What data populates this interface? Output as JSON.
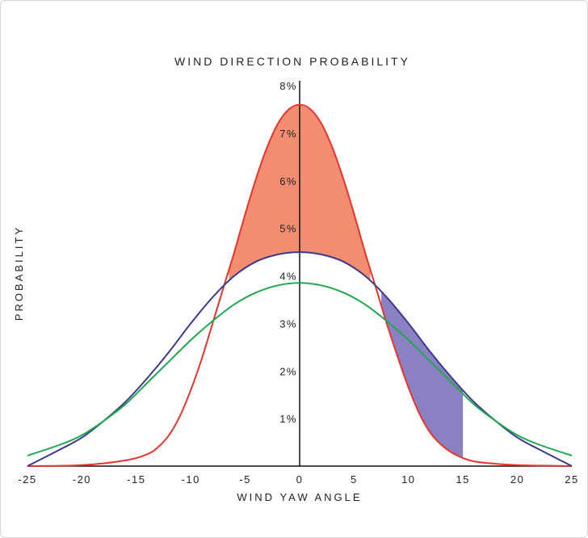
{
  "chart_data": {
    "type": "line",
    "title": "WIND DIRECTION PROBABILITY",
    "xlabel": "WIND YAW ANGLE",
    "ylabel": "PROBABILITY",
    "xlim": [
      -25,
      25
    ],
    "ylim": [
      0,
      8
    ],
    "x_ticks": [
      -25,
      -20,
      -15,
      -10,
      -5,
      0,
      5,
      10,
      15,
      20,
      25
    ],
    "x_tick_labels": [
      "-25",
      "-20",
      "-15",
      "-10",
      "-5",
      "0",
      "5",
      "10",
      "15",
      "20",
      "25"
    ],
    "y_ticks": [
      1,
      2,
      3,
      4,
      5,
      6,
      7,
      8
    ],
    "y_tick_labels": [
      "1%",
      "2%",
      "3%",
      "4%",
      "5%",
      "6%",
      "7%",
      "8%"
    ],
    "grid": false,
    "series": [
      {
        "color": "#e8342b",
        "x": [
          -25,
          -20,
          -16,
          -14,
          -13,
          -12,
          -11,
          -10,
          -9,
          -8,
          -7,
          -6,
          -5,
          -4,
          -3,
          -2,
          -1,
          0,
          1,
          2,
          3,
          4,
          5,
          6,
          7,
          8,
          9,
          10,
          11,
          12,
          13,
          14,
          15,
          16,
          18,
          20,
          22,
          25
        ],
        "y": [
          0,
          0.02,
          0.12,
          0.25,
          0.4,
          0.65,
          1.05,
          1.6,
          2.25,
          3.0,
          3.75,
          4.5,
          5.3,
          6.05,
          6.7,
          7.2,
          7.5,
          7.6,
          7.5,
          7.2,
          6.7,
          6.05,
          5.3,
          4.5,
          3.75,
          3.0,
          2.3,
          1.65,
          1.1,
          0.7,
          0.45,
          0.28,
          0.17,
          0.1,
          0.05,
          0.02,
          0.01,
          0
        ]
      },
      {
        "color": "#3a3a8c",
        "x": [
          -25,
          -22,
          -20,
          -18,
          -16,
          -14,
          -12,
          -10,
          -8,
          -6,
          -4,
          -2,
          0,
          2,
          4,
          6,
          8,
          10,
          12,
          14,
          16,
          18,
          20,
          22,
          25
        ],
        "y": [
          0.0,
          0.35,
          0.6,
          0.95,
          1.35,
          1.85,
          2.4,
          3.0,
          3.55,
          4.0,
          4.3,
          4.45,
          4.5,
          4.45,
          4.3,
          4.0,
          3.55,
          3.0,
          2.4,
          1.85,
          1.35,
          0.95,
          0.6,
          0.35,
          0.0
        ]
      },
      {
        "color": "#1fa84f",
        "x": [
          -25,
          -22,
          -20,
          -18,
          -16,
          -14,
          -12,
          -10,
          -8,
          -6,
          -4,
          -2,
          0,
          2,
          4,
          6,
          8,
          10,
          12,
          14,
          16,
          18,
          20,
          22,
          25
        ],
        "y": [
          0.22,
          0.45,
          0.65,
          0.95,
          1.3,
          1.75,
          2.2,
          2.65,
          3.05,
          3.4,
          3.65,
          3.8,
          3.85,
          3.8,
          3.65,
          3.4,
          3.05,
          2.65,
          2.2,
          1.75,
          1.3,
          0.95,
          0.65,
          0.45,
          0.22
        ]
      }
    ],
    "shaded_regions": [
      {
        "color": "#f28d72",
        "between": "red-above-blue",
        "x_range": [
          -6.5,
          6.5
        ]
      },
      {
        "color": "#8b80c2",
        "between": "blue-above-red",
        "x_range": [
          7.5,
          15
        ]
      }
    ]
  }
}
